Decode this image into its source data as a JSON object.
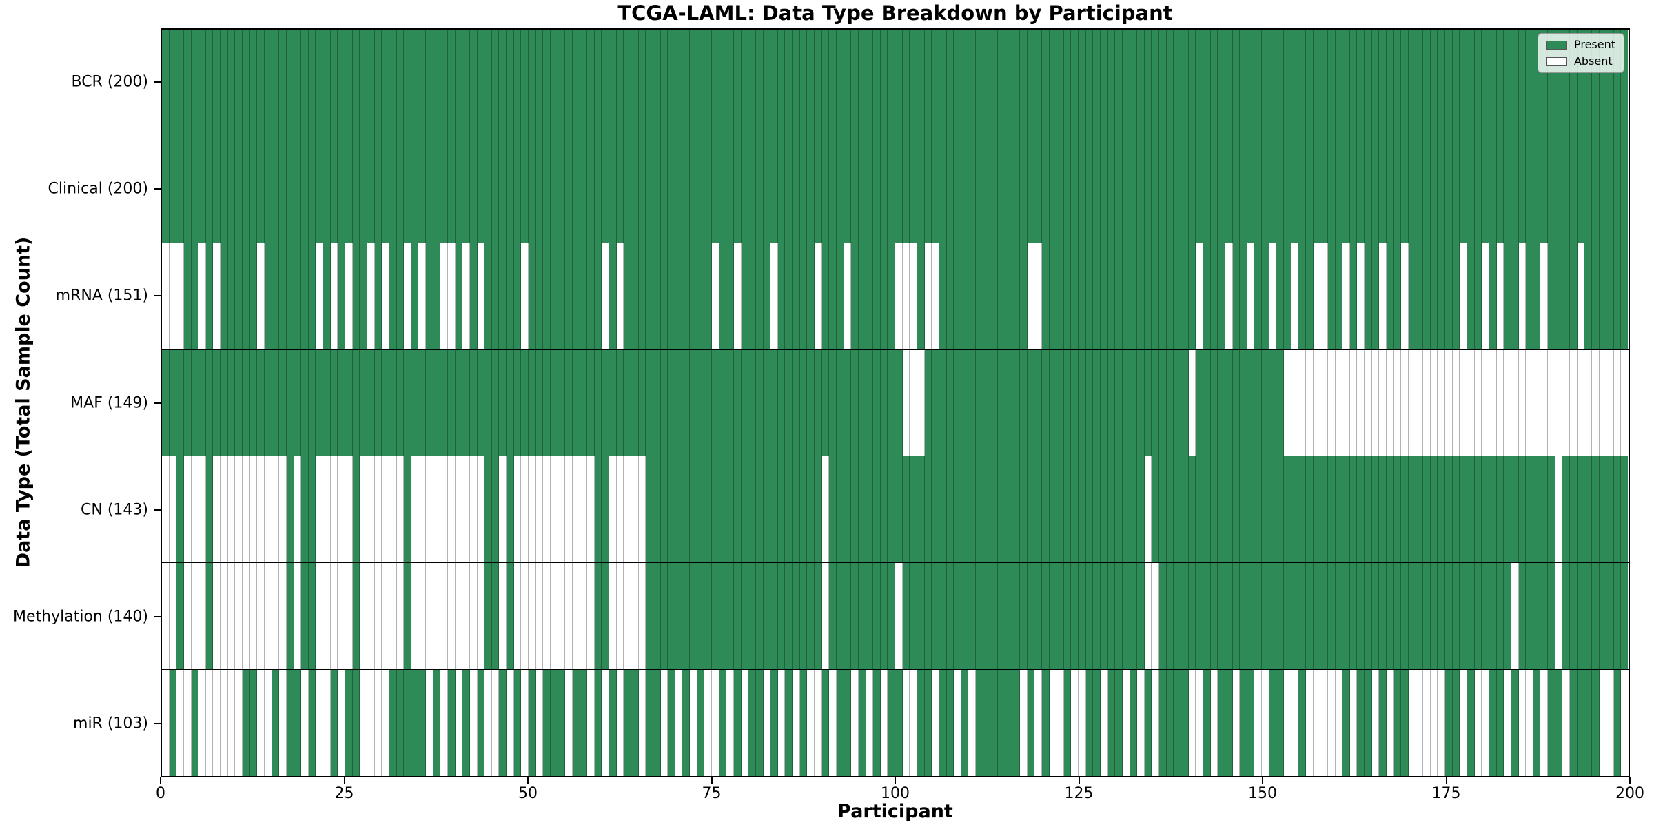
{
  "title": "TCGA-LAML: Data Type Breakdown by Participant",
  "xlabel": "Participant",
  "ylabel": "Data Type (Total Sample Count)",
  "n_participants": 200,
  "x_ticks": [
    0,
    25,
    50,
    75,
    100,
    125,
    150,
    175,
    200
  ],
  "legend": {
    "present_label": "Present",
    "absent_label": "Absent"
  },
  "colors": {
    "present": "#2e8b57",
    "absent": "#ffffff",
    "cell_edge": "rgba(0,0,0,0.30)",
    "row_separator": "#000000",
    "spine": "#000000",
    "legend_background": "rgba(255,255,255,0.8)",
    "legend_border": "#999999"
  },
  "chart_data": {
    "type": "heatmap",
    "title": "TCGA-LAML: Data Type Breakdown by Participant",
    "xlabel": "Participant",
    "ylabel": "Data Type (Total Sample Count)",
    "x_range": [
      0,
      200
    ],
    "grid": false,
    "legend_position": "upper right",
    "legend_entries": [
      "Present",
      "Absent"
    ],
    "cell_states": [
      "present",
      "absent"
    ],
    "rows": [
      {
        "name": "BCR",
        "label": "BCR (200)",
        "present_count": 200,
        "absent": []
      },
      {
        "name": "Clinical",
        "label": "Clinical (200)",
        "present_count": 200,
        "absent": []
      },
      {
        "name": "mRNA",
        "label": "mRNA (151)",
        "present_count": 151,
        "absent": [
          0,
          1,
          2,
          5,
          7,
          13,
          21,
          23,
          25,
          28,
          30,
          33,
          35,
          38,
          39,
          41,
          43,
          49,
          60,
          62,
          75,
          78,
          83,
          89,
          93,
          100,
          101,
          102,
          104,
          105,
          118,
          119,
          141,
          145,
          148,
          151,
          154,
          157,
          158,
          161,
          163,
          166,
          169,
          177,
          180,
          182,
          185,
          188,
          193
        ]
      },
      {
        "name": "MAF",
        "label": "MAF (149)",
        "present_count": 149,
        "absent": [
          101,
          102,
          103,
          140,
          153,
          154,
          155,
          156,
          157,
          158,
          159,
          160,
          161,
          162,
          163,
          164,
          165,
          166,
          167,
          168,
          169,
          170,
          171,
          172,
          173,
          174,
          175,
          176,
          177,
          178,
          179,
          180,
          181,
          182,
          183,
          184,
          185,
          186,
          187,
          188,
          189,
          190,
          191,
          192,
          193,
          194,
          195,
          196,
          197,
          198,
          199
        ]
      },
      {
        "name": "CN",
        "label": "CN (143)",
        "present_count": 143,
        "absent": [
          0,
          1,
          3,
          4,
          5,
          7,
          8,
          9,
          10,
          11,
          12,
          13,
          14,
          15,
          16,
          18,
          21,
          22,
          23,
          24,
          25,
          27,
          28,
          29,
          30,
          31,
          32,
          34,
          35,
          36,
          37,
          38,
          39,
          40,
          41,
          42,
          43,
          46,
          48,
          49,
          50,
          51,
          52,
          53,
          54,
          55,
          56,
          57,
          58,
          61,
          62,
          63,
          64,
          65,
          90,
          134,
          190
        ]
      },
      {
        "name": "Methylation",
        "label": "Methylation (140)",
        "present_count": 140,
        "absent": [
          0,
          1,
          3,
          4,
          5,
          7,
          8,
          9,
          10,
          11,
          12,
          13,
          14,
          15,
          16,
          18,
          21,
          22,
          23,
          24,
          25,
          27,
          28,
          29,
          30,
          31,
          32,
          34,
          35,
          36,
          37,
          38,
          39,
          40,
          41,
          42,
          43,
          46,
          48,
          49,
          50,
          51,
          52,
          53,
          54,
          55,
          56,
          57,
          58,
          61,
          62,
          63,
          64,
          65,
          90,
          100,
          134,
          135,
          184,
          190
        ]
      },
      {
        "name": "miR",
        "label": "miR (103)",
        "present_count": 103,
        "absent": [
          0,
          2,
          3,
          5,
          6,
          7,
          8,
          9,
          10,
          13,
          14,
          16,
          19,
          21,
          22,
          24,
          27,
          28,
          29,
          30,
          36,
          38,
          40,
          42,
          44,
          45,
          47,
          49,
          51,
          55,
          58,
          60,
          62,
          65,
          68,
          70,
          72,
          74,
          75,
          77,
          79,
          82,
          84,
          86,
          88,
          89,
          91,
          94,
          96,
          98,
          101,
          102,
          105,
          108,
          110,
          117,
          119,
          121,
          122,
          124,
          125,
          128,
          131,
          133,
          135,
          140,
          141,
          143,
          146,
          149,
          150,
          153,
          154,
          156,
          157,
          158,
          159,
          160,
          162,
          165,
          167,
          170,
          171,
          172,
          173,
          174,
          177,
          179,
          180,
          183,
          185,
          186,
          188,
          191,
          196,
          197,
          199
        ]
      }
    ]
  }
}
